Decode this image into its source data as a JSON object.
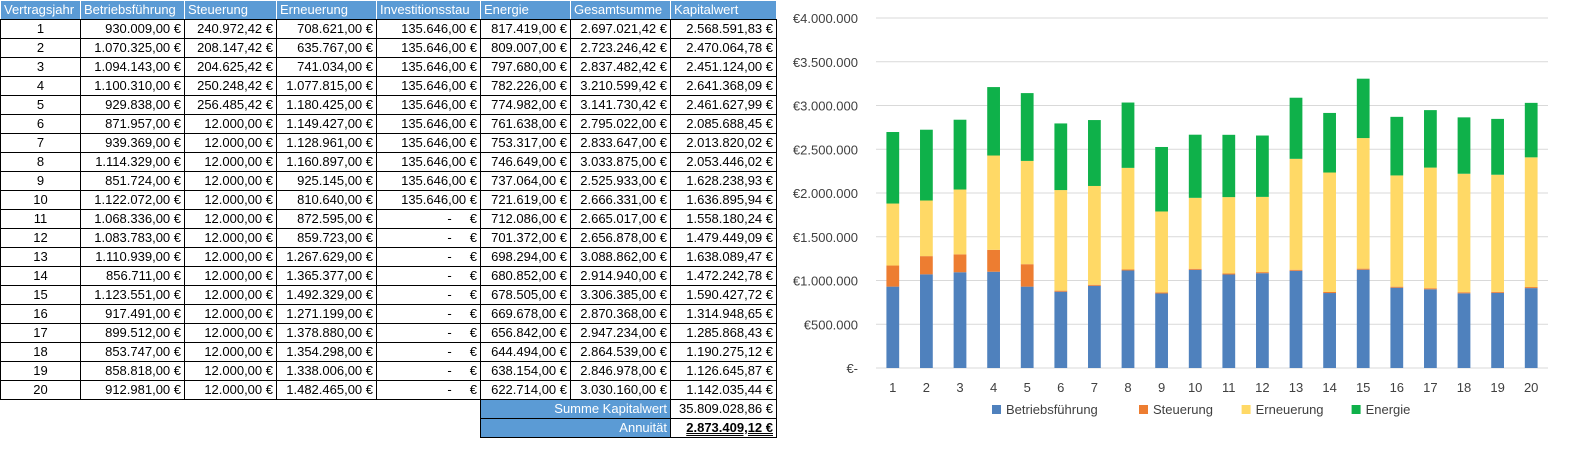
{
  "table": {
    "headers": [
      "Vertragsjahr",
      "Betriebsführung",
      "Steuerung",
      "Erneuerung",
      "Investitionsstau",
      "Energie",
      "Gesamtsumme",
      "Kapitalwert"
    ],
    "rows": [
      [
        "1",
        "930.009,00 €",
        "240.972,42 €",
        "708.621,00 €",
        "135.646,00 €",
        "817.419,00 €",
        "2.697.021,42 €",
        "2.568.591,83 €"
      ],
      [
        "2",
        "1.070.325,00 €",
        "208.147,42 €",
        "635.767,00 €",
        "135.646,00 €",
        "809.007,00 €",
        "2.723.246,42 €",
        "2.470.064,78 €"
      ],
      [
        "3",
        "1.094.143,00 €",
        "204.625,42 €",
        "741.034,00 €",
        "135.646,00 €",
        "797.680,00 €",
        "2.837.482,42 €",
        "2.451.124,00 €"
      ],
      [
        "4",
        "1.100.310,00 €",
        "250.248,42 €",
        "1.077.815,00 €",
        "135.646,00 €",
        "782.226,00 €",
        "3.210.599,42 €",
        "2.641.368,09 €"
      ],
      [
        "5",
        "929.838,00 €",
        "256.485,42 €",
        "1.180.425,00 €",
        "135.646,00 €",
        "774.982,00 €",
        "3.141.730,42 €",
        "2.461.627,99 €"
      ],
      [
        "6",
        "871.957,00 €",
        "12.000,00 €",
        "1.149.427,00 €",
        "135.646,00 €",
        "761.638,00 €",
        "2.795.022,00 €",
        "2.085.688,45 €"
      ],
      [
        "7",
        "939.369,00 €",
        "12.000,00 €",
        "1.128.961,00 €",
        "135.646,00 €",
        "753.317,00 €",
        "2.833.647,00 €",
        "2.013.820,02 €"
      ],
      [
        "8",
        "1.114.329,00 €",
        "12.000,00 €",
        "1.160.897,00 €",
        "135.646,00 €",
        "746.649,00 €",
        "3.033.875,00 €",
        "2.053.446,02 €"
      ],
      [
        "9",
        "851.724,00 €",
        "12.000,00 €",
        "925.145,00 €",
        "135.646,00 €",
        "737.064,00 €",
        "2.525.933,00 €",
        "1.628.238,93 €"
      ],
      [
        "10",
        "1.122.072,00 €",
        "12.000,00 €",
        "810.640,00 €",
        "135.646,00 €",
        "721.619,00 €",
        "2.666.331,00 €",
        "1.636.895,94 €"
      ],
      [
        "11",
        "1.068.336,00 €",
        "12.000,00 €",
        "872.595,00 €",
        "-     €",
        "712.086,00 €",
        "2.665.017,00 €",
        "1.558.180,24 €"
      ],
      [
        "12",
        "1.083.783,00 €",
        "12.000,00 €",
        "859.723,00 €",
        "-     €",
        "701.372,00 €",
        "2.656.878,00 €",
        "1.479.449,09 €"
      ],
      [
        "13",
        "1.110.939,00 €",
        "12.000,00 €",
        "1.267.629,00 €",
        "-     €",
        "698.294,00 €",
        "3.088.862,00 €",
        "1.638.089,47 €"
      ],
      [
        "14",
        "856.711,00 €",
        "12.000,00 €",
        "1.365.377,00 €",
        "-     €",
        "680.852,00 €",
        "2.914.940,00 €",
        "1.472.242,78 €"
      ],
      [
        "15",
        "1.123.551,00 €",
        "12.000,00 €",
        "1.492.329,00 €",
        "-     €",
        "678.505,00 €",
        "3.306.385,00 €",
        "1.590.427,72 €"
      ],
      [
        "16",
        "917.491,00 €",
        "12.000,00 €",
        "1.271.199,00 €",
        "-     €",
        "669.678,00 €",
        "2.870.368,00 €",
        "1.314.948,65 €"
      ],
      [
        "17",
        "899.512,00 €",
        "12.000,00 €",
        "1.378.880,00 €",
        "-     €",
        "656.842,00 €",
        "2.947.234,00 €",
        "1.285.868,43 €"
      ],
      [
        "18",
        "853.747,00 €",
        "12.000,00 €",
        "1.354.298,00 €",
        "-     €",
        "644.494,00 €",
        "2.864.539,00 €",
        "1.190.275,12 €"
      ],
      [
        "19",
        "858.818,00 €",
        "12.000,00 €",
        "1.338.006,00 €",
        "-     €",
        "638.154,00 €",
        "2.846.978,00 €",
        "1.126.645,87 €"
      ],
      [
        "20",
        "912.981,00 €",
        "12.000,00 €",
        "1.482.465,00 €",
        "-     €",
        "622.714,00 €",
        "3.030.160,00 €",
        "1.142.035,44 €"
      ]
    ],
    "summary": {
      "sum_label": "Summe Kapitalwert",
      "sum_value": "35.809.028,86 €",
      "annuity_label": "Annuität",
      "annuity_value": "2.873.409,12 €"
    }
  },
  "chart_data": {
    "type": "bar",
    "stacked": true,
    "categories": [
      "1",
      "2",
      "3",
      "4",
      "5",
      "6",
      "7",
      "8",
      "9",
      "10",
      "11",
      "12",
      "13",
      "14",
      "15",
      "16",
      "17",
      "18",
      "19",
      "20"
    ],
    "series": [
      {
        "name": "Betriebsführung",
        "color": "#4f81bd",
        "values": [
          930009,
          1070325,
          1094143,
          1100310,
          929838,
          871957,
          939369,
          1114329,
          851724,
          1122072,
          1068336,
          1083783,
          1110939,
          856711,
          1123551,
          917491,
          899512,
          853747,
          858818,
          912981
        ]
      },
      {
        "name": "Steuerung",
        "color": "#ed7d31",
        "values": [
          240972.42,
          208147.42,
          204625.42,
          250248.42,
          256485.42,
          12000,
          12000,
          12000,
          12000,
          12000,
          12000,
          12000,
          12000,
          12000,
          12000,
          12000,
          12000,
          12000,
          12000,
          12000
        ]
      },
      {
        "name": "Erneuerung",
        "color": "#ffd966",
        "values": [
          708621,
          635767,
          741034,
          1077815,
          1180425,
          1149427,
          1128961,
          1160897,
          925145,
          810640,
          872595,
          859723,
          1267629,
          1365377,
          1492329,
          1271199,
          1378880,
          1354298,
          1338006,
          1482465
        ]
      },
      {
        "name": "Energie",
        "color": "#0fb14a",
        "values": [
          817419,
          809007,
          797680,
          782226,
          774982,
          761638,
          753317,
          746649,
          737064,
          721619,
          712086,
          701372,
          698294,
          680852,
          678505,
          669678,
          656842,
          644494,
          638154,
          622714
        ]
      }
    ],
    "ylim": [
      0,
      4000000
    ],
    "ytick_labels": [
      "€-",
      "€500.000",
      "€1.000.000",
      "€1.500.000",
      "€2.000.000",
      "€2.500.000",
      "€3.000.000",
      "€3.500.000",
      "€4.000.000"
    ],
    "grid": true,
    "legend_position": "bottom"
  }
}
